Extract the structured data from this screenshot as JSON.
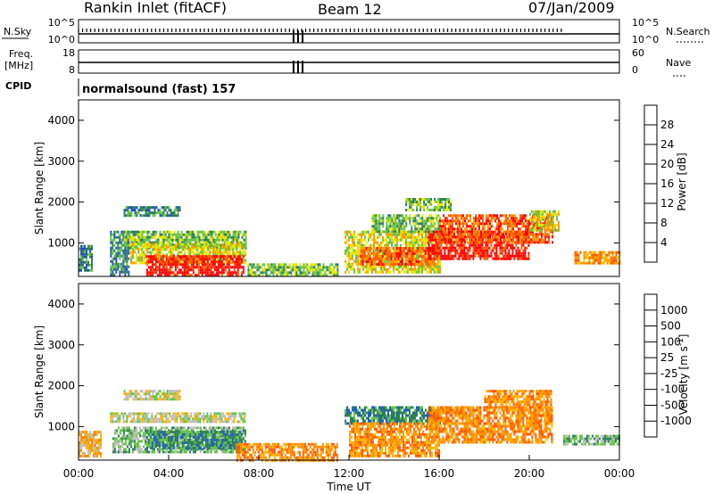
{
  "header": {
    "station": "Rankin Inlet (fitACF)",
    "beam": "Beam 12",
    "date": "07/Jan/2009"
  },
  "top_panels": {
    "nsky_label": "N.Sky",
    "nsky_ticks": [
      "10^5",
      "10^0"
    ],
    "nsearch_label": "N.Search",
    "nsearch_ticks": [
      "10^5",
      "10^0"
    ],
    "freq_label_1": "Freq.",
    "freq_label_2": "[MHz]",
    "freq_ticks": [
      "18",
      "8"
    ],
    "nave_label": "Nave",
    "nave_ticks": [
      "60",
      "0"
    ],
    "cpid_label": "CPID",
    "cpid_text": "normalsound (fast) 157"
  },
  "chart_data": [
    {
      "type": "heatmap",
      "name": "power",
      "ylabel": "Slant Range [km]",
      "yticks": [
        "4000",
        "3000",
        "2000",
        "1000"
      ],
      "ylim": [
        180,
        4500
      ],
      "xlim": [
        "00:00",
        "24:00"
      ],
      "colorbar": {
        "label": "Power [dB]",
        "ticks": [
          "28",
          "24",
          "20",
          "16",
          "12",
          "8",
          "4"
        ],
        "colors": [
          "#0000ff",
          "#1f4fbf",
          "#2e7d5a",
          "#66c24a",
          "#e6e600",
          "#ff9a00",
          "#ff5a00",
          "#ff0000"
        ]
      },
      "regions": [
        {
          "t0": 0.0,
          "t1": 0.6,
          "r0": 300,
          "r1": 950,
          "level": 2
        },
        {
          "t0": 1.4,
          "t1": 2.2,
          "r0": 250,
          "r1": 1300,
          "level": 2
        },
        {
          "t0": 2.0,
          "t1": 7.4,
          "r0": 900,
          "r1": 1300,
          "level": 3
        },
        {
          "t0": 2.0,
          "t1": 4.5,
          "r0": 1650,
          "r1": 1900,
          "level": 2
        },
        {
          "t0": 2.3,
          "t1": 7.4,
          "r0": 500,
          "r1": 1000,
          "level": 4
        },
        {
          "t0": 3.0,
          "t1": 7.3,
          "r0": 200,
          "r1": 700,
          "level": 7
        },
        {
          "t0": 7.5,
          "t1": 11.5,
          "r0": 200,
          "r1": 500,
          "level": 3
        },
        {
          "t0": 11.8,
          "t1": 16.0,
          "r0": 300,
          "r1": 1300,
          "level": 4
        },
        {
          "t0": 12.5,
          "t1": 15.8,
          "r0": 500,
          "r1": 900,
          "level": 6
        },
        {
          "t0": 13.0,
          "t1": 16.0,
          "r0": 1300,
          "r1": 1700,
          "level": 3
        },
        {
          "t0": 14.5,
          "t1": 16.5,
          "r0": 1800,
          "r1": 2100,
          "level": 3
        },
        {
          "t0": 15.5,
          "t1": 20.0,
          "r0": 600,
          "r1": 1300,
          "level": 7
        },
        {
          "t0": 16.0,
          "t1": 21.0,
          "r0": 1000,
          "r1": 1700,
          "level": 6
        },
        {
          "t0": 20.0,
          "t1": 21.3,
          "r0": 1300,
          "r1": 1800,
          "level": 4
        },
        {
          "t0": 22.0,
          "t1": 24.0,
          "r0": 500,
          "r1": 800,
          "level": 5
        }
      ]
    },
    {
      "type": "heatmap",
      "name": "velocity",
      "ylabel": "Slant Range [km]",
      "xlabel": "Time UT",
      "yticks": [
        "4000",
        "3000",
        "2000",
        "1000"
      ],
      "xticks": [
        "00:00",
        "04:00",
        "08:00",
        "12:00",
        "16:00",
        "20:00",
        "00:00"
      ],
      "ylim": [
        180,
        4500
      ],
      "xlim": [
        "00:00",
        "24:00"
      ],
      "colorbar": {
        "label": "Velocity [m s^-1]",
        "ticks": [
          "1000",
          "500",
          "100",
          "25",
          "-25",
          "-100",
          "-500",
          "-1000"
        ],
        "colors": [
          "#ff0000",
          "#ff5500",
          "#ff8c00",
          "#ffb300",
          "#bfbfbf",
          "#66c24a",
          "#2e7d5a",
          "#1f5fbf",
          "#2020cc"
        ]
      },
      "regions": [
        {
          "t0": 0.0,
          "t1": 1.0,
          "r0": 300,
          "r1": 900,
          "level": 3
        },
        {
          "t0": 1.4,
          "t1": 7.4,
          "r0": 1100,
          "r1": 1350,
          "level": 4
        },
        {
          "t0": 2.0,
          "t1": 4.5,
          "r0": 1650,
          "r1": 1900,
          "level": 4
        },
        {
          "t0": 1.5,
          "t1": 7.4,
          "r0": 400,
          "r1": 1000,
          "level": 5
        },
        {
          "t0": 3.0,
          "t1": 7.2,
          "r0": 500,
          "r1": 900,
          "level": 6
        },
        {
          "t0": 7.0,
          "t1": 11.5,
          "r0": 200,
          "r1": 600,
          "level": 2
        },
        {
          "t0": 11.8,
          "t1": 16.0,
          "r0": 1100,
          "r1": 1500,
          "level": 6
        },
        {
          "t0": 12.0,
          "t1": 16.0,
          "r0": 300,
          "r1": 1100,
          "level": 2
        },
        {
          "t0": 15.5,
          "t1": 21.0,
          "r0": 600,
          "r1": 1500,
          "level": 2
        },
        {
          "t0": 18.0,
          "t1": 21.0,
          "r0": 1500,
          "r1": 1900,
          "level": 2
        },
        {
          "t0": 21.5,
          "t1": 24.0,
          "r0": 600,
          "r1": 800,
          "level": 5
        }
      ]
    }
  ]
}
